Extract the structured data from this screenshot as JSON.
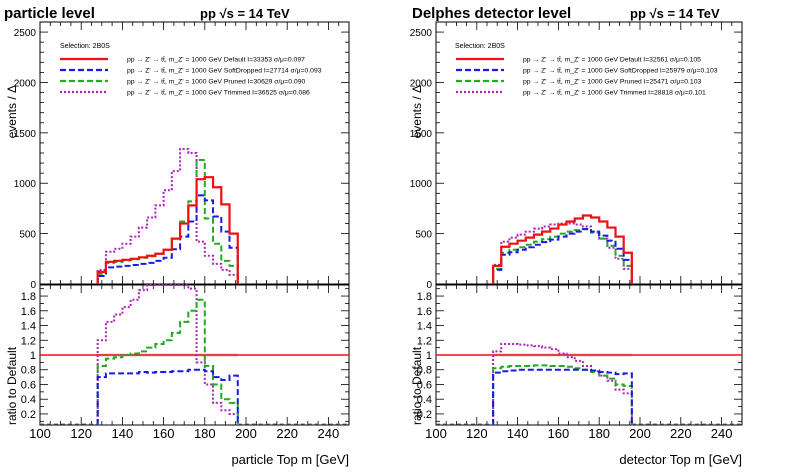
{
  "chart_data": [
    {
      "type": "line",
      "panel": "left",
      "title": "particle level",
      "energy_label": "pp   √s = 14 TeV",
      "selection": "Selection: 2B0S",
      "xlabel": "particle Top m [GeV]",
      "ylabel": "events / Δ",
      "ratio_ylabel": "ratio to Default",
      "xlim": [
        100,
        250
      ],
      "ylim": [
        0,
        2600
      ],
      "ratio_ylim": [
        0.05,
        1.95
      ],
      "x_ticks": [
        100,
        120,
        140,
        160,
        180,
        200,
        220,
        240
      ],
      "y_ticks": [
        0,
        500,
        1000,
        1500,
        2000,
        2500
      ],
      "ratio_ticks": [
        0.2,
        0.4,
        0.6,
        0.8,
        1,
        1.2,
        1.4,
        1.6,
        1.8
      ],
      "bin_edges": [
        128,
        132,
        136,
        140,
        144,
        148,
        152,
        156,
        160,
        164,
        168,
        172,
        176,
        180,
        184,
        188,
        192,
        196
      ],
      "series": [
        {
          "name": "pp → Z' → tt̄, m_Z' = 1000 GeV Default I=33353 σ/μ=0.097",
          "color": "#ee1111",
          "dash": "none",
          "values": [
            120,
            220,
            230,
            240,
            250,
            265,
            280,
            300,
            340,
            450,
            600,
            780,
            1040,
            1060,
            960,
            790,
            500
          ],
          "ratio": [
            1,
            1,
            1,
            1,
            1,
            1,
            1,
            1,
            1,
            1,
            1,
            1,
            1,
            1,
            1,
            1,
            1
          ]
        },
        {
          "name": "pp → Z' → tt̄, m_Z' = 1000 GeV SoftDropped I=27714 σ/μ=0.093",
          "color": "#1a1ae6",
          "dash": "6,3",
          "values": [
            80,
            165,
            172,
            180,
            188,
            200,
            210,
            230,
            260,
            345,
            470,
            620,
            880,
            830,
            670,
            520,
            360
          ],
          "ratio": [
            0.7,
            0.75,
            0.75,
            0.75,
            0.75,
            0.77,
            0.76,
            0.77,
            0.77,
            0.78,
            0.78,
            0.8,
            0.8,
            0.78,
            0.7,
            0.66,
            0.72
          ]
        },
        {
          "name": "pp → Z' → tt̄, m_Z' = 1000 GeV Pruned I=30629 σ/μ=0.090",
          "color": "#22aa22",
          "dash": "6,3",
          "values": [
            100,
            210,
            220,
            235,
            245,
            260,
            275,
            300,
            340,
            450,
            620,
            820,
            1230,
            650,
            400,
            230,
            180
          ],
          "ratio": [
            0.85,
            0.95,
            0.97,
            1.0,
            1.02,
            1.05,
            1.1,
            1.15,
            1.2,
            1.3,
            1.45,
            1.6,
            1.75,
            0.85,
            0.6,
            0.4,
            0.35
          ]
        },
        {
          "name": "pp → Z' → tt̄, m_Z' = 1000 GeV Trimmed I=36525 σ/μ=0.086",
          "color": "#aa22bb",
          "dash": "2,2",
          "values": [
            140,
            320,
            350,
            400,
            470,
            560,
            660,
            780,
            930,
            1120,
            1340,
            1300,
            420,
            280,
            200,
            140,
            90
          ],
          "ratio": [
            1.2,
            1.45,
            1.55,
            1.65,
            1.75,
            1.88,
            1.95,
            1.95,
            1.95,
            1.95,
            1.95,
            1.9,
            0.9,
            0.6,
            0.35,
            0.25,
            0.2
          ]
        }
      ]
    },
    {
      "type": "line",
      "panel": "right",
      "title": "Delphes detector level",
      "energy_label": "pp   √s = 14 TeV",
      "selection": "Selection: 2B0S",
      "xlabel": "detector Top m [GeV]",
      "ylabel": "events / Δ",
      "ratio_ylabel": "ratio to Default",
      "xlim": [
        100,
        250
      ],
      "ylim": [
        0,
        2600
      ],
      "ratio_ylim": [
        0.05,
        1.95
      ],
      "x_ticks": [
        100,
        120,
        140,
        160,
        180,
        200,
        220,
        240
      ],
      "y_ticks": [
        0,
        500,
        1000,
        1500,
        2000,
        2500
      ],
      "ratio_ticks": [
        0.2,
        0.4,
        0.6,
        0.8,
        1,
        1.2,
        1.4,
        1.6,
        1.8
      ],
      "bin_edges": [
        128,
        132,
        136,
        140,
        144,
        148,
        152,
        156,
        160,
        164,
        168,
        172,
        176,
        180,
        184,
        188,
        192,
        196
      ],
      "series": [
        {
          "name": "pp → Z' → tt̄, m_Z' = 1000 GeV Default I=32561 σ/μ=0.105",
          "color": "#ee1111",
          "dash": "none",
          "values": [
            180,
            370,
            400,
            430,
            460,
            490,
            520,
            550,
            590,
            620,
            650,
            680,
            660,
            620,
            560,
            470,
            310
          ],
          "ratio": [
            1,
            1,
            1,
            1,
            1,
            1,
            1,
            1,
            1,
            1,
            1,
            1,
            1,
            1,
            1,
            1,
            1
          ]
        },
        {
          "name": "pp → Z' → tt̄, m_Z' = 1000 GeV SoftDropped I=25979 σ/μ=0.103",
          "color": "#1a1ae6",
          "dash": "6,3",
          "values": [
            140,
            290,
            315,
            340,
            365,
            390,
            415,
            440,
            470,
            500,
            520,
            545,
            520,
            480,
            430,
            350,
            240
          ],
          "ratio": [
            0.76,
            0.78,
            0.79,
            0.8,
            0.8,
            0.8,
            0.8,
            0.8,
            0.8,
            0.8,
            0.8,
            0.8,
            0.79,
            0.77,
            0.76,
            0.74,
            0.75
          ]
        },
        {
          "name": "pp → Z' → tt̄, m_Z' = 1000 GeV Pruned I=25471 σ/μ=0.103",
          "color": "#22aa22",
          "dash": "6,3",
          "values": [
            150,
            310,
            340,
            365,
            390,
            420,
            445,
            470,
            500,
            520,
            535,
            545,
            510,
            450,
            380,
            280,
            180
          ],
          "ratio": [
            0.82,
            0.84,
            0.85,
            0.85,
            0.85,
            0.86,
            0.86,
            0.85,
            0.85,
            0.84,
            0.82,
            0.8,
            0.77,
            0.72,
            0.68,
            0.6,
            0.58
          ]
        },
        {
          "name": "pp → Z' → tt̄, m_Z' = 1000 GeV Trimmed I=28818 σ/μ=0.101",
          "color": "#aa22bb",
          "dash": "2,2",
          "values": [
            190,
            420,
            460,
            490,
            520,
            550,
            570,
            590,
            600,
            600,
            590,
            570,
            520,
            450,
            360,
            250,
            150
          ],
          "ratio": [
            1.05,
            1.15,
            1.15,
            1.14,
            1.13,
            1.12,
            1.1,
            1.08,
            1.02,
            0.97,
            0.92,
            0.85,
            0.78,
            0.72,
            0.65,
            0.53,
            0.48
          ]
        }
      ]
    }
  ]
}
